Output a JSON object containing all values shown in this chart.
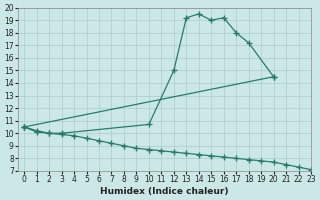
{
  "bg_color": "#cce8e6",
  "line_color": "#2a7a6a",
  "grid_color": "#aaccc9",
  "xlabel": "Humidex (Indice chaleur)",
  "xlim": [
    -0.5,
    23
  ],
  "ylim": [
    7,
    20
  ],
  "xticks": [
    0,
    1,
    2,
    3,
    4,
    5,
    6,
    7,
    8,
    9,
    10,
    11,
    12,
    13,
    14,
    15,
    16,
    17,
    18,
    19,
    20,
    21,
    22,
    23
  ],
  "yticks": [
    7,
    8,
    9,
    10,
    11,
    12,
    13,
    14,
    15,
    16,
    17,
    18,
    19,
    20
  ],
  "line1_x": [
    0,
    1,
    2,
    3,
    10,
    12,
    13,
    14,
    15,
    16,
    17,
    18,
    20
  ],
  "line1_y": [
    10.5,
    10.1,
    10.0,
    10.0,
    10.7,
    15.0,
    19.2,
    19.5,
    19.0,
    19.2,
    18.0,
    17.2,
    14.5
  ],
  "line2_x": [
    0,
    20
  ],
  "line2_y": [
    10.5,
    14.5
  ],
  "line3_x": [
    0,
    1,
    2,
    3,
    4,
    5,
    6,
    7,
    8,
    9,
    10,
    11,
    12,
    13,
    14,
    15,
    16,
    17,
    18,
    19,
    20,
    21,
    22,
    23
  ],
  "line3_y": [
    10.5,
    10.2,
    10.0,
    9.9,
    9.8,
    9.6,
    9.4,
    9.2,
    9.0,
    8.8,
    8.7,
    8.6,
    8.5,
    8.4,
    8.3,
    8.2,
    8.1,
    8.0,
    7.9,
    7.8,
    7.7,
    7.5,
    7.3,
    7.1
  ]
}
